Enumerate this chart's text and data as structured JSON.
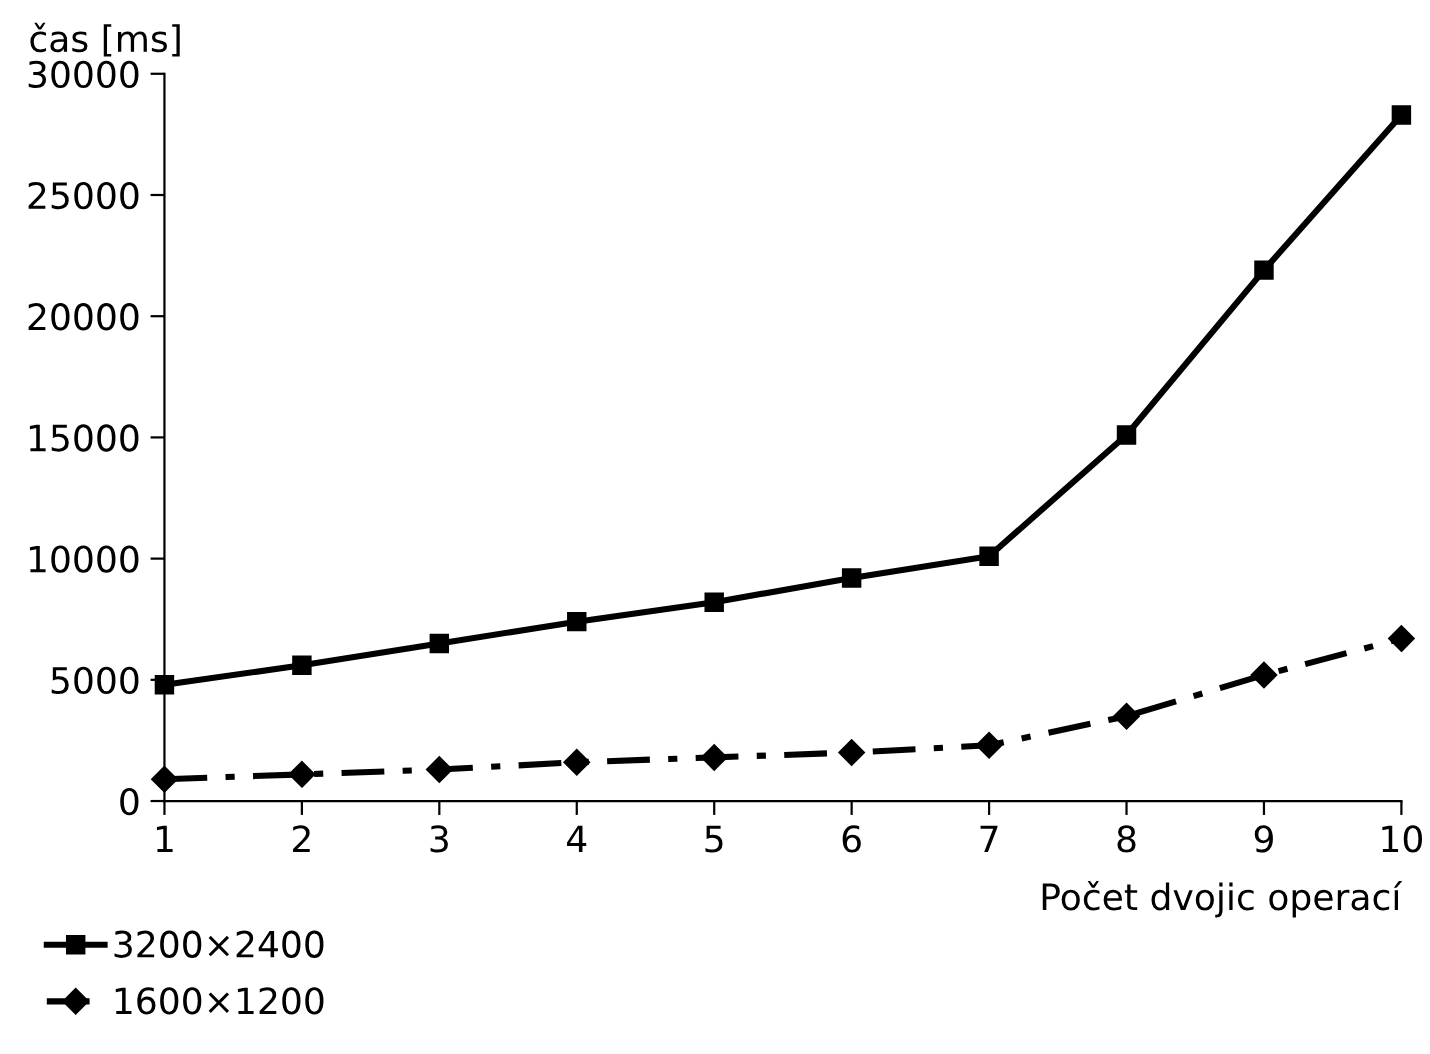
{
  "chart_data": {
    "type": "line",
    "xlabel": "Počet dvojic operací",
    "ylabel": "čas [ms]",
    "x": [
      1,
      2,
      3,
      4,
      5,
      6,
      7,
      8,
      9,
      10
    ],
    "series": [
      {
        "name": "3200×2400",
        "color": "#000000",
        "marker": "square",
        "line_style": "solid",
        "values": [
          4800,
          5600,
          6500,
          7400,
          8200,
          9200,
          10100,
          15100,
          21900,
          28300
        ]
      },
      {
        "name": "1600×1200",
        "color": "#000000",
        "marker": "diamond",
        "line_style": "dashed",
        "values": [
          900,
          1100,
          1300,
          1600,
          1800,
          2000,
          2300,
          3500,
          5200,
          6700
        ]
      }
    ],
    "xlim": [
      1,
      10
    ],
    "xticks": [
      1,
      2,
      3,
      4,
      5,
      6,
      7,
      8,
      9,
      10
    ],
    "ylim": [
      0,
      30000
    ],
    "yticks": [
      0,
      5000,
      10000,
      15000,
      20000,
      25000,
      30000
    ],
    "grid": false,
    "legend": "bottom left"
  }
}
